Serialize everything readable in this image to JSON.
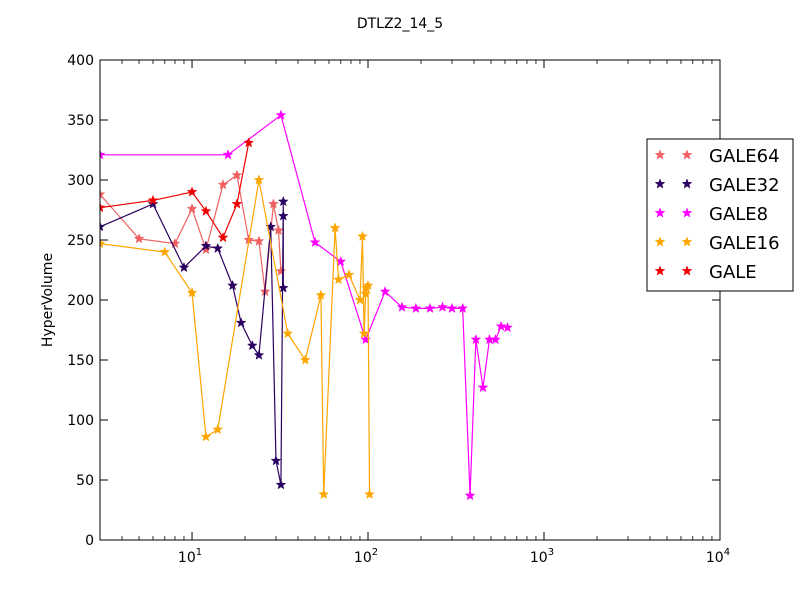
{
  "chart_data": {
    "type": "line",
    "title": "DTLZ2_14_5",
    "xlabel": "",
    "ylabel": "HyperVolume",
    "xscale": "log",
    "xlim": [
      3,
      10000
    ],
    "ylim": [
      0,
      400
    ],
    "xticks": [
      10,
      100,
      1000,
      10000
    ],
    "xtick_labels": [
      {
        "base": "10",
        "exp": "1"
      },
      {
        "base": "10",
        "exp": "2"
      },
      {
        "base": "10",
        "exp": "3"
      },
      {
        "base": "10",
        "exp": "4"
      }
    ],
    "yticks": [
      0,
      50,
      100,
      150,
      200,
      250,
      300,
      350,
      400
    ],
    "ytick_labels": [
      "0",
      "50",
      "100",
      "150",
      "200",
      "250",
      "300",
      "350",
      "400"
    ],
    "grid": false,
    "legend_position": "right",
    "marker": "star",
    "series": [
      {
        "name": "GALE64",
        "color": "#f06060",
        "x": [
          3,
          5,
          8,
          10,
          12,
          15,
          18,
          21,
          24,
          26,
          29,
          31,
          32
        ],
        "y": [
          288,
          251,
          247,
          276,
          242,
          296,
          304,
          250,
          249,
          207,
          280,
          258,
          224
        ]
      },
      {
        "name": "GALE32",
        "color": "#2a0060",
        "x": [
          3,
          6,
          9,
          12,
          14,
          17,
          19,
          22,
          24,
          28,
          30,
          32,
          33,
          33,
          33
        ],
        "y": [
          261,
          280,
          227,
          245,
          243,
          212,
          181,
          162,
          154,
          261,
          66,
          46,
          282,
          270,
          210
        ]
      },
      {
        "name": "GALE8",
        "color": "#ff00ff",
        "x": [
          3,
          16,
          32,
          50,
          70,
          97,
          125,
          156,
          187,
          225,
          265,
          300,
          345,
          380,
          410,
          450,
          490,
          530,
          570,
          620
        ],
        "y": [
          321,
          321,
          354,
          248,
          232,
          167,
          207,
          194,
          193,
          193,
          194,
          193,
          193,
          37,
          167,
          127,
          167,
          167,
          178,
          177
        ]
      },
      {
        "name": "GALE16",
        "color": "#ffa500",
        "x": [
          3,
          7,
          10,
          12,
          14,
          24,
          35,
          44,
          54,
          56,
          65,
          68,
          78,
          90,
          93,
          95,
          97,
          98,
          100,
          102
        ],
        "y": [
          247,
          240,
          206,
          86,
          92,
          300,
          172,
          150,
          204,
          38,
          260,
          217,
          221,
          200,
          253,
          172,
          205,
          210,
          212,
          38
        ]
      },
      {
        "name": "GALE",
        "color": "#ee0000",
        "x": [
          3,
          6,
          10,
          12,
          15,
          18,
          21
        ],
        "y": [
          277,
          283,
          290,
          274,
          252,
          280,
          331
        ]
      }
    ]
  }
}
